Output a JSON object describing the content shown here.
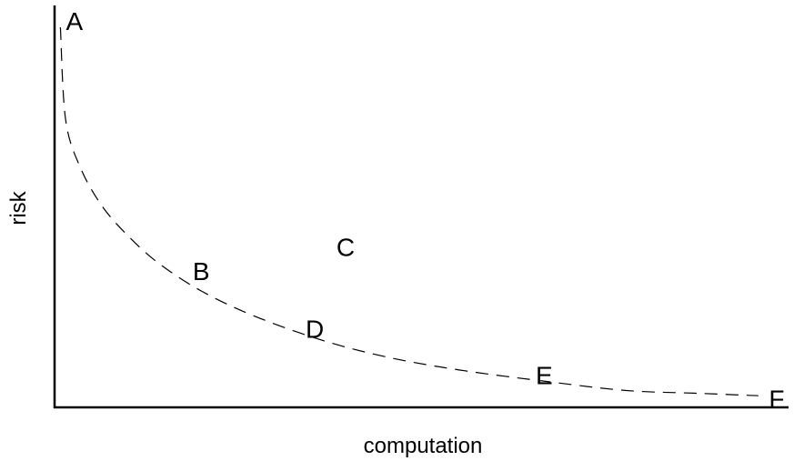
{
  "chart_data": {
    "type": "scatter",
    "title": "",
    "xlabel": "computation",
    "ylabel": "risk",
    "xlim": [
      0,
      100
    ],
    "ylim": [
      0,
      100
    ],
    "grid": false,
    "tick_labels": false,
    "points": [
      {
        "label": "A",
        "x": 2.7,
        "y": 96.5
      },
      {
        "label": "B",
        "x": 20.0,
        "y": 34.0
      },
      {
        "label": "C",
        "x": 39.7,
        "y": 40.0
      },
      {
        "label": "D",
        "x": 35.5,
        "y": 19.5
      },
      {
        "label": "E",
        "x": 66.8,
        "y": 8.0
      },
      {
        "label": "F",
        "x": 98.5,
        "y": 2.0
      }
    ],
    "frontier": {
      "style": "dashed",
      "points": [
        [
          0.8,
          95
        ],
        [
          1.5,
          72
        ],
        [
          3.5,
          60
        ],
        [
          6.6,
          50
        ],
        [
          10.5,
          42
        ],
        [
          14.5,
          35.6
        ],
        [
          20.1,
          29
        ],
        [
          27,
          23
        ],
        [
          36.1,
          17
        ],
        [
          45,
          12.7
        ],
        [
          55,
          9.4
        ],
        [
          67,
          6.5
        ],
        [
          78,
          4.2
        ],
        [
          88,
          3.5
        ],
        [
          96,
          2.9
        ]
      ]
    }
  }
}
